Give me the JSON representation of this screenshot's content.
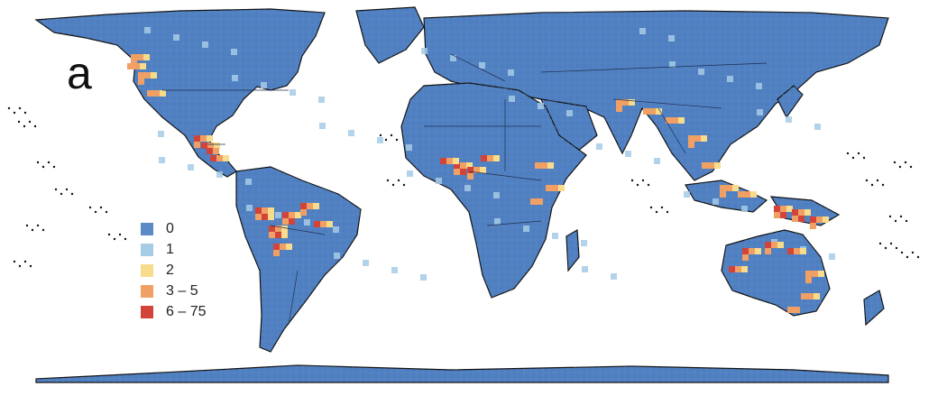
{
  "panel_label": "a",
  "colors": {
    "ocean": "#ffffff",
    "land": "#4f7fc0",
    "border": "#1f2f50",
    "coast": "#111111"
  },
  "legend": {
    "items": [
      {
        "label": "0",
        "color": "#5b8ac6"
      },
      {
        "label": "1",
        "color": "#a6cbe6"
      },
      {
        "label": "2",
        "color": "#f8dc8c"
      },
      {
        "label": "3 – 5",
        "color": "#f0a064"
      },
      {
        "label": "6 – 75",
        "color": "#d2443a"
      }
    ]
  },
  "hotspot_regions": [
    {
      "region": "Pacific NW coast",
      "class": "3 – 5"
    },
    {
      "region": "Central America",
      "class": "6 – 75"
    },
    {
      "region": "Amazon basin",
      "class": "6 – 75"
    },
    {
      "region": "Gulf of Guinea",
      "class": "6 – 75"
    },
    {
      "region": "East Africa",
      "class": "3 – 5"
    },
    {
      "region": "Himalaya",
      "class": "3 – 5"
    },
    {
      "region": "Southeast Asia",
      "class": "3 – 5"
    },
    {
      "region": "New Guinea",
      "class": "6 – 75"
    },
    {
      "region": "Northern Australia",
      "class": "6 – 75"
    },
    {
      "region": "Eastern Australia",
      "class": "3 – 5"
    }
  ]
}
